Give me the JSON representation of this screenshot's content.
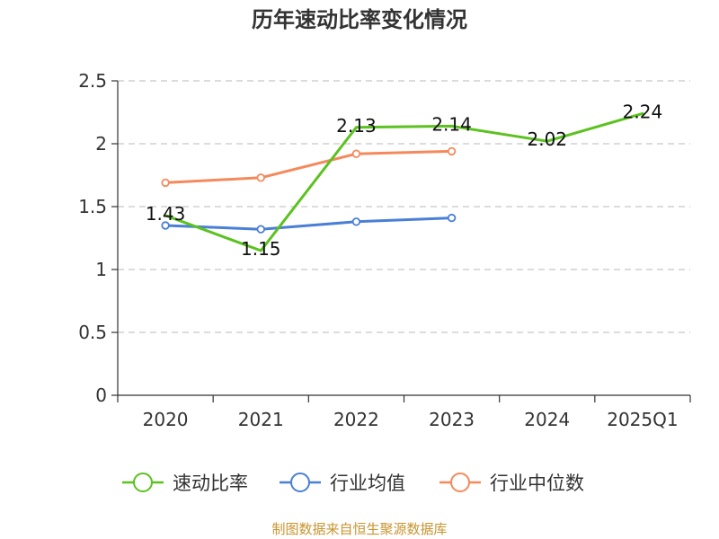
{
  "chart_data": {
    "type": "line",
    "title": "历年速动比率变化情况",
    "categories": [
      "2020",
      "2021",
      "2022",
      "2023",
      "2024",
      "2025Q1"
    ],
    "ylim": [
      0,
      2.5
    ],
    "yticks": [
      0,
      0.5,
      1,
      1.5,
      2,
      2.5
    ],
    "ytick_labels": [
      "0",
      "0.5",
      "1",
      "1.5",
      "2",
      "2.5"
    ],
    "grid": true,
    "legend_position": "bottom",
    "series": [
      {
        "name": "速动比率",
        "color": "#5bc21f",
        "values": [
          1.43,
          1.15,
          2.13,
          2.14,
          2.02,
          2.24
        ],
        "labels": [
          "1.43",
          "1.15",
          "2.13",
          "2.14",
          "2.02",
          "2.24"
        ]
      },
      {
        "name": "行业均值",
        "color": "#4a7fd6",
        "values": [
          1.35,
          1.32,
          1.38,
          1.41,
          null,
          null
        ]
      },
      {
        "name": "行业中位数",
        "color": "#f5895c",
        "values": [
          1.69,
          1.73,
          1.92,
          1.94,
          null,
          null
        ]
      }
    ]
  },
  "source_text": "制图数据来自恒生聚源数据库"
}
